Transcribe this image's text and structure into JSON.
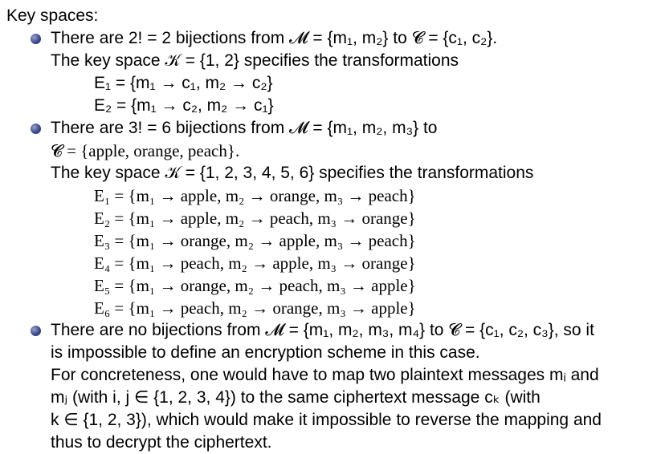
{
  "heading": "Key spaces:",
  "bullet1": {
    "line1": "There are 2! = 2 bijections from 𝓜 = {m₁, m₂} to 𝓒 = {c₁, c₂}.",
    "line2": "The key space 𝒦 = {1, 2} specifies the transformations",
    "transforms": [
      "E₁ = {m₁ → c₁,  m₂ → c₂}",
      "E₂ = {m₁ → c₂,  m₂ → c₁}"
    ]
  },
  "bullet2": {
    "line1": "There are 3! = 6 bijections from 𝓜 = {m₁, m₂, m₃} to",
    "line2": "𝓒 = {apple, orange, peach}.",
    "line3": "The key space 𝒦 = {1, 2, 3, 4, 5, 6} specifies the transformations",
    "transforms": [
      "E₁ = {m₁ → apple,  m₂ → orange,  m₃ → peach}",
      "E₂ = {m₁ → apple,  m₂ → peach,  m₃ → orange}",
      "E₃ = {m₁ → orange,  m₂ → apple,  m₃ → peach}",
      "E₄ = {m₁ → peach,  m₂ → apple,  m₃ → orange}",
      "E₅ = {m₁ → orange,  m₂ → peach,  m₃ → apple}",
      "E₆ = {m₁ → peach,  m₂ → orange,  m₃ → apple}"
    ]
  },
  "bullet3": {
    "lines": [
      "There are no bijections from 𝓜 = {m₁, m₂, m₃, m₄} to 𝓒 = {c₁, c₂, c₃}, so it",
      "is impossible to define an encryption scheme in this case.",
      "For concreteness, one would have to map two plaintext messages mᵢ and",
      "mⱼ (with i, j ∈ {1, 2, 3, 4}) to the same ciphertext message cₖ (with",
      "k ∈ {1, 2, 3}), which would make it impossible to reverse the mapping and",
      "thus to decrypt the ciphertext."
    ]
  }
}
